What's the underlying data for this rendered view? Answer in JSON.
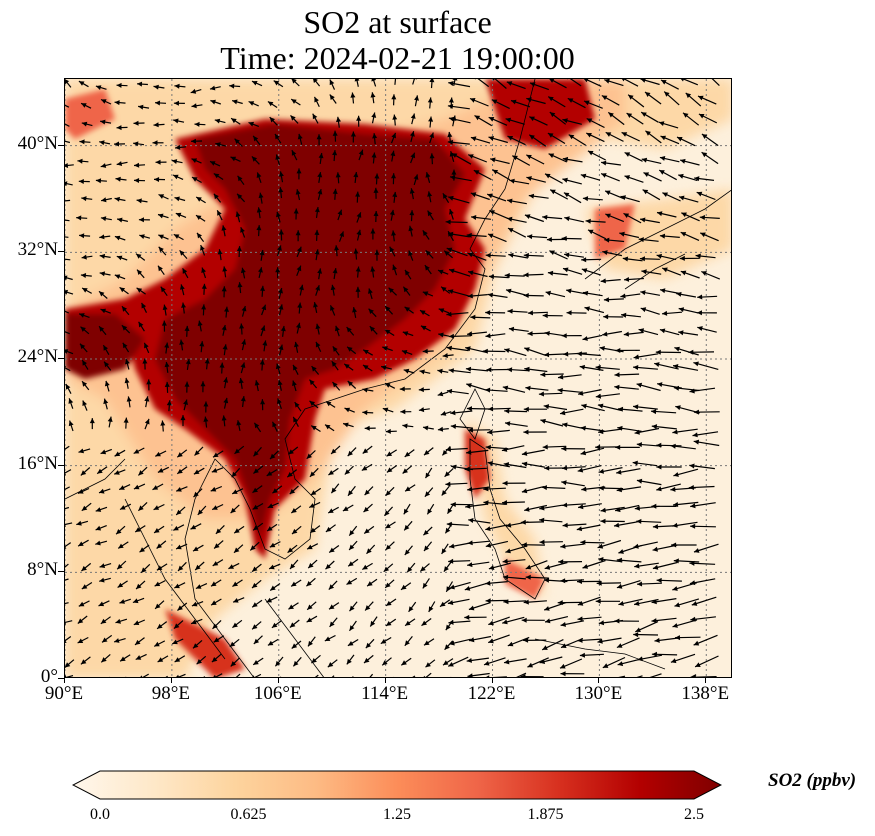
{
  "title": {
    "line1": "SO2 at surface",
    "line2": "Time: 2024-02-21 19:00:00"
  },
  "map": {
    "variable": "SO2",
    "units": "ppbv",
    "lon_range": [
      90,
      140
    ],
    "lat_range": [
      0,
      45
    ],
    "lat_ticks": [
      {
        "value": 40,
        "label": "40°N"
      },
      {
        "value": 32,
        "label": "32°N"
      },
      {
        "value": 24,
        "label": "24°N"
      },
      {
        "value": 16,
        "label": "16°N"
      },
      {
        "value": 8,
        "label": "8°N"
      },
      {
        "value": 0,
        "label": "0°"
      }
    ],
    "lon_ticks": [
      {
        "value": 90,
        "label": "90°E"
      },
      {
        "value": 98,
        "label": "98°E"
      },
      {
        "value": 106,
        "label": "106°E"
      },
      {
        "value": 114,
        "label": "114°E"
      },
      {
        "value": 122,
        "label": "122°E"
      },
      {
        "value": 130,
        "label": "130°E"
      },
      {
        "value": 138,
        "label": "138°E"
      }
    ],
    "gridlines": true,
    "wind_vectors": true,
    "colormap": "OrRd",
    "background_color": "#fdf0dc",
    "high_color": "#7f0000"
  },
  "colorbar": {
    "label": "SO2 (ppbv)",
    "min": 0.0,
    "max": 2.5,
    "ticks": [
      "0.0",
      "0.625",
      "1.25",
      "1.875",
      "2.5"
    ],
    "extend": "both",
    "stops": [
      "#fff7ec",
      "#fee8c8",
      "#fdd49e",
      "#fdbb84",
      "#fc8d59",
      "#ef6548",
      "#d7301f",
      "#b30000",
      "#7f0000"
    ]
  }
}
